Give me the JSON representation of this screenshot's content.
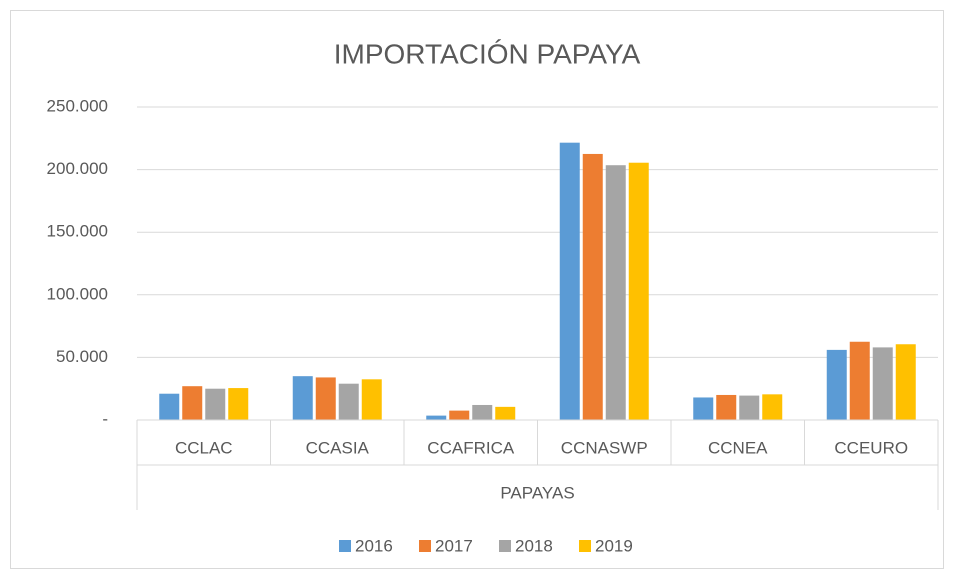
{
  "chart_data": {
    "type": "bar",
    "title": "IMPORTACIÓN PAPAYA",
    "categories": [
      "CCLAC",
      "CCASIA",
      "CCAFRICA",
      "CCNASWP",
      "CCNEA",
      "CCEURO"
    ],
    "x_group_label": "PAPAYAS",
    "series": [
      {
        "name": "2016",
        "color": "#5b9bd5",
        "values": [
          21000,
          35000,
          3500,
          221500,
          18000,
          56000
        ]
      },
      {
        "name": "2017",
        "color": "#ed7d31",
        "values": [
          27000,
          34000,
          7500,
          212500,
          20000,
          62500
        ]
      },
      {
        "name": "2018",
        "color": "#a5a5a5",
        "values": [
          25000,
          29000,
          12000,
          203500,
          19500,
          58000
        ]
      },
      {
        "name": "2019",
        "color": "#ffc000",
        "values": [
          25500,
          32500,
          10500,
          205500,
          20500,
          60500
        ]
      }
    ],
    "ylim": [
      0,
      250000
    ],
    "yticks": [
      {
        "value": 0,
        "label": "-"
      },
      {
        "value": 50000,
        "label": "50.000"
      },
      {
        "value": 100000,
        "label": "100.000"
      },
      {
        "value": 150000,
        "label": "150.000"
      },
      {
        "value": 200000,
        "label": "200.000"
      },
      {
        "value": 250000,
        "label": "250.000"
      }
    ],
    "grid": true,
    "legend": "bottom"
  }
}
